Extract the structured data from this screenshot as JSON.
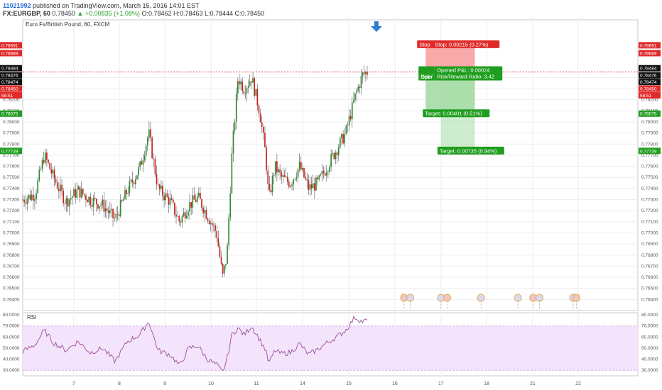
{
  "header": {
    "user": "11021992",
    "published": " published on TradingView.com, March 15, 2016 14:01 EST",
    "symbol": "FX:EURGBP, 60",
    "last": "0.78450",
    "change": "+0.00835 (+1.08%)",
    "ohlc": "O:0.78462 H:0.78463 L:0.78444 C:0.78450"
  },
  "chart_data": {
    "type": "candlestick",
    "title": "Euro Fx/British Pound, 60, FXCM",
    "ylim": [
      0.763,
      0.7892
    ],
    "y_ticks": [
      "0.78400",
      "0.78300",
      "0.78200",
      "0.78100",
      "0.78000",
      "0.77900",
      "0.77800",
      "0.77700",
      "0.77600",
      "0.77500",
      "0.77400",
      "0.77300",
      "0.77200",
      "0.77100",
      "0.77000",
      "0.76900",
      "0.76800",
      "0.76700",
      "0.76600",
      "0.76500",
      "0.76400"
    ],
    "x_ticks": [
      {
        "label": "7",
        "x": 0.083
      },
      {
        "label": "8",
        "x": 0.157
      },
      {
        "label": "9",
        "x": 0.231
      },
      {
        "label": "10",
        "x": 0.306
      },
      {
        "label": "11",
        "x": 0.38
      },
      {
        "label": "14",
        "x": 0.455
      },
      {
        "label": "15",
        "x": 0.53
      },
      {
        "label": "16",
        "x": 0.605
      },
      {
        "label": "17",
        "x": 0.68
      },
      {
        "label": "18",
        "x": 0.754
      },
      {
        "label": "21",
        "x": 0.829
      },
      {
        "label": "22",
        "x": 0.903
      }
    ],
    "path": [
      [
        0.0,
        0.773
      ],
      [
        0.02,
        0.7735
      ],
      [
        0.035,
        0.777
      ],
      [
        0.05,
        0.775
      ],
      [
        0.07,
        0.7728
      ],
      [
        0.09,
        0.7738
      ],
      [
        0.11,
        0.773
      ],
      [
        0.13,
        0.7725
      ],
      [
        0.15,
        0.7712
      ],
      [
        0.17,
        0.7738
      ],
      [
        0.19,
        0.7758
      ],
      [
        0.205,
        0.779
      ],
      [
        0.22,
        0.774
      ],
      [
        0.24,
        0.7728
      ],
      [
        0.255,
        0.771
      ],
      [
        0.27,
        0.7725
      ],
      [
        0.285,
        0.7732
      ],
      [
        0.3,
        0.7716
      ],
      [
        0.315,
        0.77
      ],
      [
        0.325,
        0.766
      ],
      [
        0.332,
        0.768
      ],
      [
        0.34,
        0.777
      ],
      [
        0.35,
        0.784
      ],
      [
        0.36,
        0.783
      ],
      [
        0.372,
        0.784
      ],
      [
        0.385,
        0.781
      ],
      [
        0.395,
        0.777
      ],
      [
        0.4,
        0.773
      ],
      [
        0.41,
        0.776
      ],
      [
        0.42,
        0.775
      ],
      [
        0.435,
        0.7745
      ],
      [
        0.45,
        0.776
      ],
      [
        0.465,
        0.774
      ],
      [
        0.48,
        0.7745
      ],
      [
        0.495,
        0.776
      ],
      [
        0.51,
        0.7775
      ],
      [
        0.525,
        0.779
      ],
      [
        0.54,
        0.7822
      ],
      [
        0.552,
        0.7842
      ],
      [
        0.56,
        0.7845
      ]
    ],
    "price_tags": [
      {
        "label": "0.78691",
        "price": 0.78691,
        "color": "#e02a2a"
      },
      {
        "label": "0.78689",
        "price": 0.7862,
        "color": "#e02a2a"
      },
      {
        "label": "0.78484",
        "price": 0.78484,
        "color": "#111111"
      },
      {
        "label": "0.78476",
        "price": 0.7842,
        "color": "#111111"
      },
      {
        "label": "0.78474",
        "price": 0.7836,
        "color": "#111111"
      },
      {
        "label": "0.78450",
        "price": 0.783,
        "color": "#e02a2a"
      },
      {
        "label": "58:51",
        "price": 0.7824,
        "color": "#e02a2a"
      },
      {
        "label": "0.78075",
        "price": 0.78075,
        "color": "#1f9d1f"
      },
      {
        "label": "0.77739",
        "price": 0.77739,
        "color": "#1f9d1f"
      }
    ],
    "position": {
      "stop_label": "Stop",
      "stop": "Stop: 0.00215 (0.27%)",
      "opened_short": "Oper",
      "risk_short": "Risk/",
      "opened": "Opened P&L: 0.00024",
      "risk_reward": "Risk/Reward Ratio: 3.42",
      "target1": "Target: 0.00401 (0.51%)",
      "target2": "Target: 0.00735 (0.94%)",
      "entry": 0.7845,
      "stop_price": 0.78691,
      "target1_price": 0.78075,
      "target2_price": 0.77739
    },
    "rsi": {
      "label": "RSI",
      "ylim": [
        25,
        82
      ],
      "band": [
        30,
        70
      ],
      "ticks": [
        "80.0000",
        "70.0000",
        "60.0000",
        "50.0000",
        "40.0000",
        "30.0000"
      ],
      "path": [
        [
          0.0,
          47
        ],
        [
          0.02,
          53
        ],
        [
          0.035,
          66
        ],
        [
          0.05,
          55
        ],
        [
          0.07,
          48
        ],
        [
          0.09,
          56
        ],
        [
          0.11,
          46
        ],
        [
          0.13,
          50
        ],
        [
          0.15,
          38
        ],
        [
          0.17,
          56
        ],
        [
          0.19,
          62
        ],
        [
          0.205,
          74
        ],
        [
          0.22,
          48
        ],
        [
          0.24,
          44
        ],
        [
          0.255,
          34
        ],
        [
          0.27,
          50
        ],
        [
          0.285,
          52
        ],
        [
          0.3,
          40
        ],
        [
          0.315,
          35
        ],
        [
          0.325,
          28
        ],
        [
          0.332,
          40
        ],
        [
          0.34,
          62
        ],
        [
          0.35,
          68
        ],
        [
          0.36,
          62
        ],
        [
          0.372,
          70
        ],
        [
          0.385,
          58
        ],
        [
          0.395,
          48
        ],
        [
          0.4,
          36
        ],
        [
          0.41,
          48
        ],
        [
          0.42,
          45
        ],
        [
          0.435,
          46
        ],
        [
          0.45,
          54
        ],
        [
          0.465,
          44
        ],
        [
          0.48,
          49
        ],
        [
          0.495,
          55
        ],
        [
          0.51,
          60
        ],
        [
          0.525,
          66
        ],
        [
          0.54,
          78
        ],
        [
          0.552,
          74
        ],
        [
          0.56,
          75
        ]
      ]
    },
    "colors": {
      "up": "#2e8b2e",
      "down": "#cc2222",
      "rsi_line": "#9c4f9c",
      "rsi_band": "#f3e3fb",
      "stop_zone": "#f79a9a",
      "target_zone": "#a6dca6"
    }
  }
}
